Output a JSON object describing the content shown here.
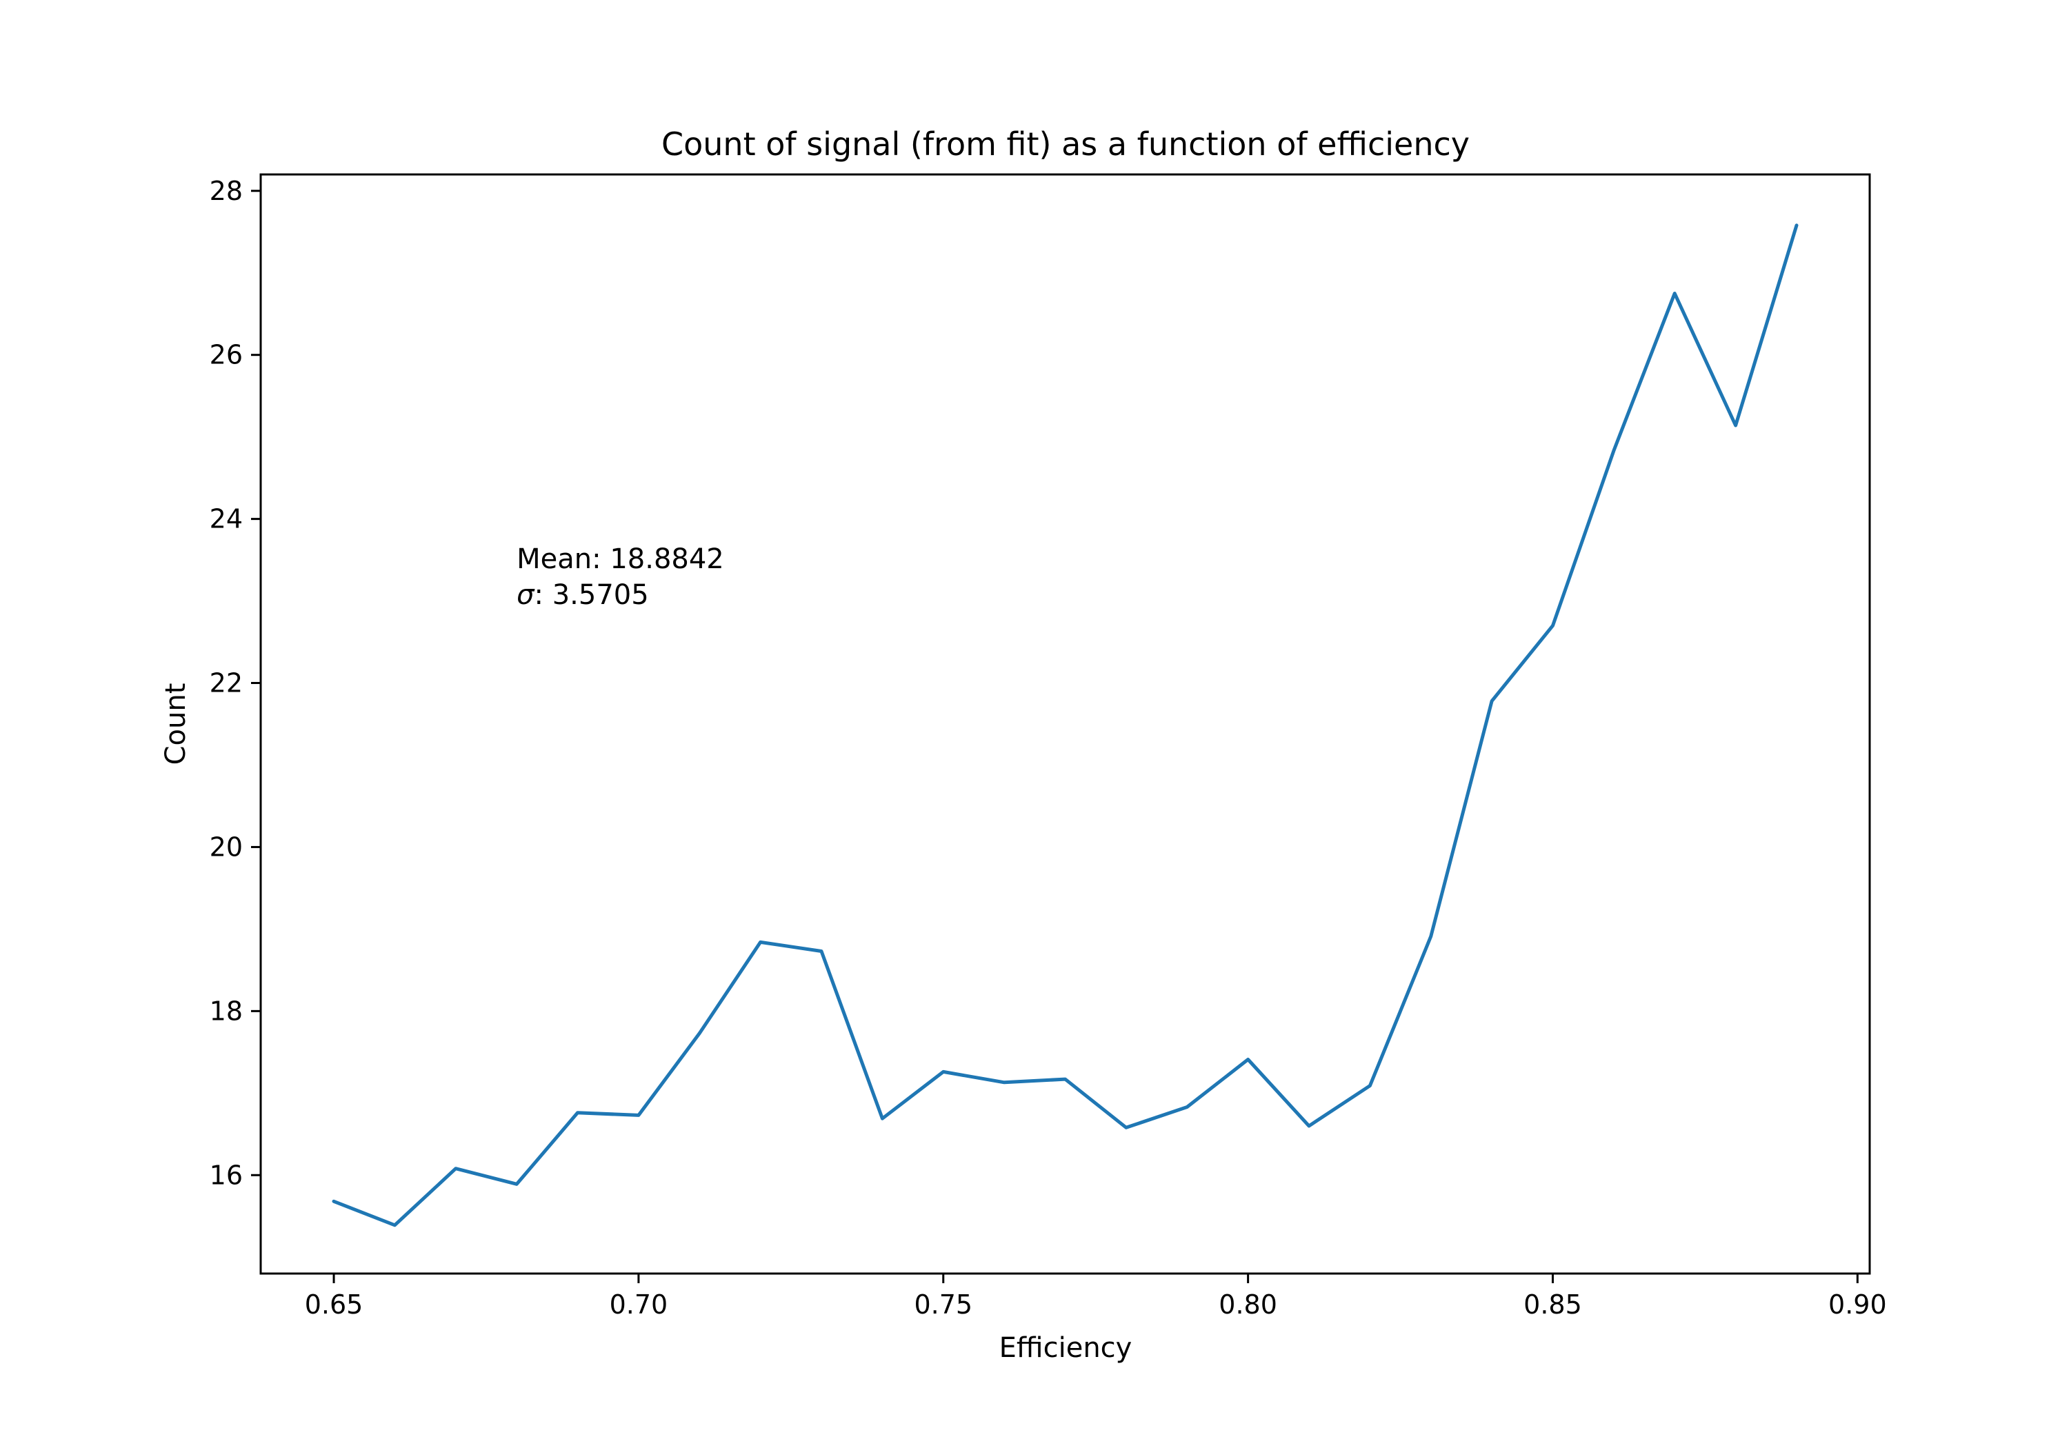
{
  "chart_data": {
    "type": "line",
    "title": "Count of signal (from fit) as a function of efficiency",
    "xlabel": "Efficiency",
    "ylabel": "Count",
    "xlim": [
      0.638,
      0.902
    ],
    "ylim": [
      14.8,
      28.2
    ],
    "xticks": [
      0.65,
      0.7,
      0.75,
      0.8,
      0.85,
      0.9
    ],
    "xtick_labels": [
      "0.65",
      "0.70",
      "0.75",
      "0.80",
      "0.85",
      "0.90"
    ],
    "yticks": [
      16,
      18,
      20,
      22,
      24,
      26,
      28
    ],
    "ytick_labels": [
      "16",
      "18",
      "20",
      "22",
      "24",
      "26",
      "28"
    ],
    "grid": false,
    "annotation": {
      "mean_line": "Mean: 18.8842",
      "sigma_line": ": 3.5705",
      "sigma_symbol": "σ",
      "x": 0.68,
      "y": 23.4
    },
    "series": [
      {
        "color": "#1f77b4",
        "x": [
          0.65,
          0.66,
          0.67,
          0.68,
          0.69,
          0.7,
          0.71,
          0.72,
          0.73,
          0.74,
          0.75,
          0.76,
          0.77,
          0.78,
          0.79,
          0.8,
          0.81,
          0.82,
          0.83,
          0.84,
          0.85,
          0.86,
          0.87,
          0.88,
          0.89
        ],
        "y": [
          15.68,
          15.39,
          16.08,
          15.89,
          16.76,
          16.73,
          17.73,
          18.84,
          18.73,
          16.69,
          17.26,
          17.13,
          17.17,
          16.58,
          16.83,
          17.41,
          16.6,
          17.09,
          18.91,
          21.78,
          22.7,
          24.83,
          26.75,
          25.14,
          27.58
        ]
      }
    ]
  }
}
